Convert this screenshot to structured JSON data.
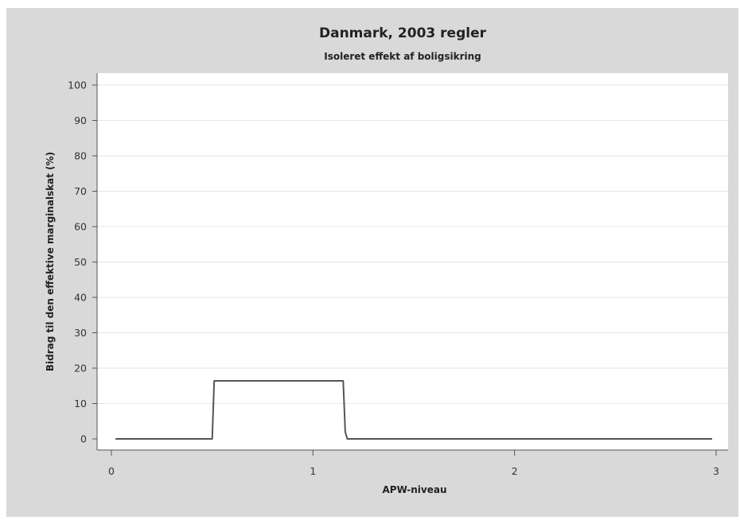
{
  "chart_data": {
    "type": "line",
    "title": "Danmark, 2003 regler",
    "subtitle": "Isoleret effekt af boligsikring",
    "xlabel": "APW-niveau",
    "ylabel": "Bidrag til den effektive marginalskat (%)",
    "xlim": [
      0,
      3
    ],
    "ylim": [
      0,
      100
    ],
    "x_ticks": [
      0,
      1,
      2,
      3
    ],
    "y_ticks": [
      0,
      10,
      20,
      30,
      40,
      50,
      60,
      70,
      80,
      90,
      100
    ],
    "grid": "horizontal",
    "legend": "none",
    "series": [
      {
        "x": [
          0.02,
          0.5,
          0.51,
          1.15,
          1.16,
          1.17,
          2.98
        ],
        "y": [
          0,
          0,
          16.4,
          16.4,
          2,
          0,
          0
        ]
      }
    ]
  },
  "colors": {
    "frame_background": "#d9d9d9",
    "plot_background": "#ffffff",
    "gridline": "#e6e6e6",
    "line": "#555555"
  }
}
